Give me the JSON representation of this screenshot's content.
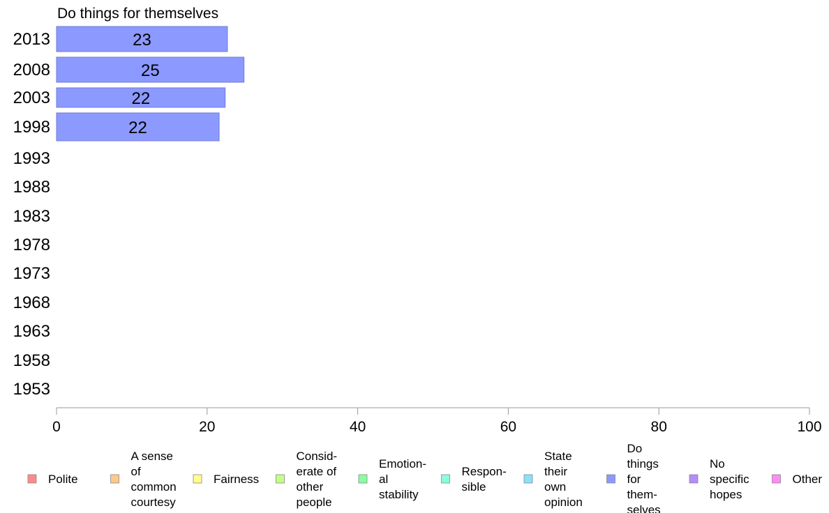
{
  "chart_data": {
    "type": "bar",
    "orientation": "horizontal",
    "title": "Do things for themselves",
    "categories": [
      "2013",
      "2008",
      "2003",
      "1998",
      "1993",
      "1988",
      "1983",
      "1978",
      "1973",
      "1968",
      "1963",
      "1958",
      "1953"
    ],
    "series": [
      {
        "name": "Do things for themselves",
        "color": "#8c99ff",
        "values": [
          22.7,
          24.9,
          22.4,
          21.6,
          null,
          null,
          null,
          null,
          null,
          null,
          null,
          null,
          null
        ],
        "labels": [
          "23",
          "25",
          "22",
          "22",
          "",
          "",
          "",
          "",
          "",
          "",
          "",
          "",
          ""
        ]
      }
    ],
    "xlim": [
      0,
      100
    ],
    "xticks": [
      "0",
      "20",
      "40",
      "60",
      "80",
      "100"
    ],
    "grid": false,
    "legend": {
      "position": "bottom",
      "items": [
        {
          "lines": [
            "Polite"
          ],
          "color": "#ff8a8a"
        },
        {
          "lines": [
            "A sense",
            "of",
            "common",
            "courtesy"
          ],
          "color": "#ffc98a"
        },
        {
          "lines": [
            "Fairness"
          ],
          "color": "#ffff8a"
        },
        {
          "lines": [
            "Consid-",
            "erate of",
            "other",
            "people"
          ],
          "color": "#c4ff8a"
        },
        {
          "lines": [
            "Emotion-",
            "al",
            "stability"
          ],
          "color": "#8aff9e"
        },
        {
          "lines": [
            "Respon-",
            "sible"
          ],
          "color": "#8affde"
        },
        {
          "lines": [
            "State",
            "their",
            "own",
            "opinion"
          ],
          "color": "#8ae0ff"
        },
        {
          "lines": [
            "Do",
            "things",
            "for",
            "them-",
            "selves"
          ],
          "color": "#8c99ff"
        },
        {
          "lines": [
            "No",
            "specific",
            "hopes"
          ],
          "color": "#b38cff"
        },
        {
          "lines": [
            "Other"
          ],
          "color": "#ff8cf5"
        }
      ]
    }
  }
}
